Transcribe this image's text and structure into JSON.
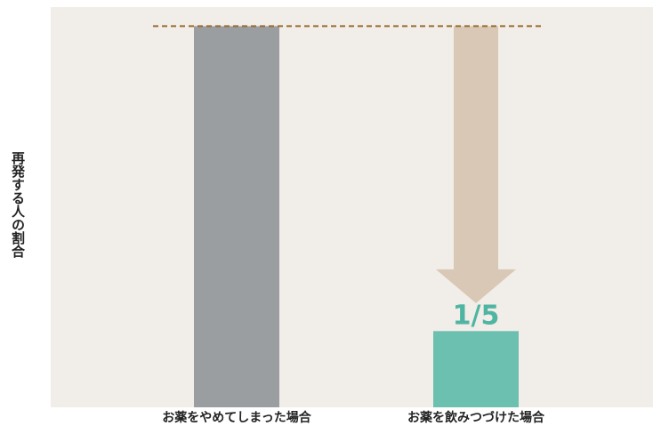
{
  "chart_data": {
    "type": "bar",
    "categories": [
      "お薬をやめてしまった場合",
      "お薬を飲みつづけた場合"
    ],
    "values": [
      100,
      20
    ],
    "ylabel": "再発する人の割合",
    "xlabel": "",
    "ylim": [
      0,
      105
    ],
    "grid": false,
    "annotation": {
      "text": "1/5",
      "reference_value": 100,
      "arrow_from": 100,
      "arrow_to": 25
    },
    "colors": {
      "background": "#f1ede8",
      "bar_stopped": "#9a9ea1",
      "bar_continued": "#6cc0b0",
      "arrow": "#d8c8b5",
      "reference_line": "#9a6b2f",
      "ratio_text": "#4fb5a3"
    }
  }
}
